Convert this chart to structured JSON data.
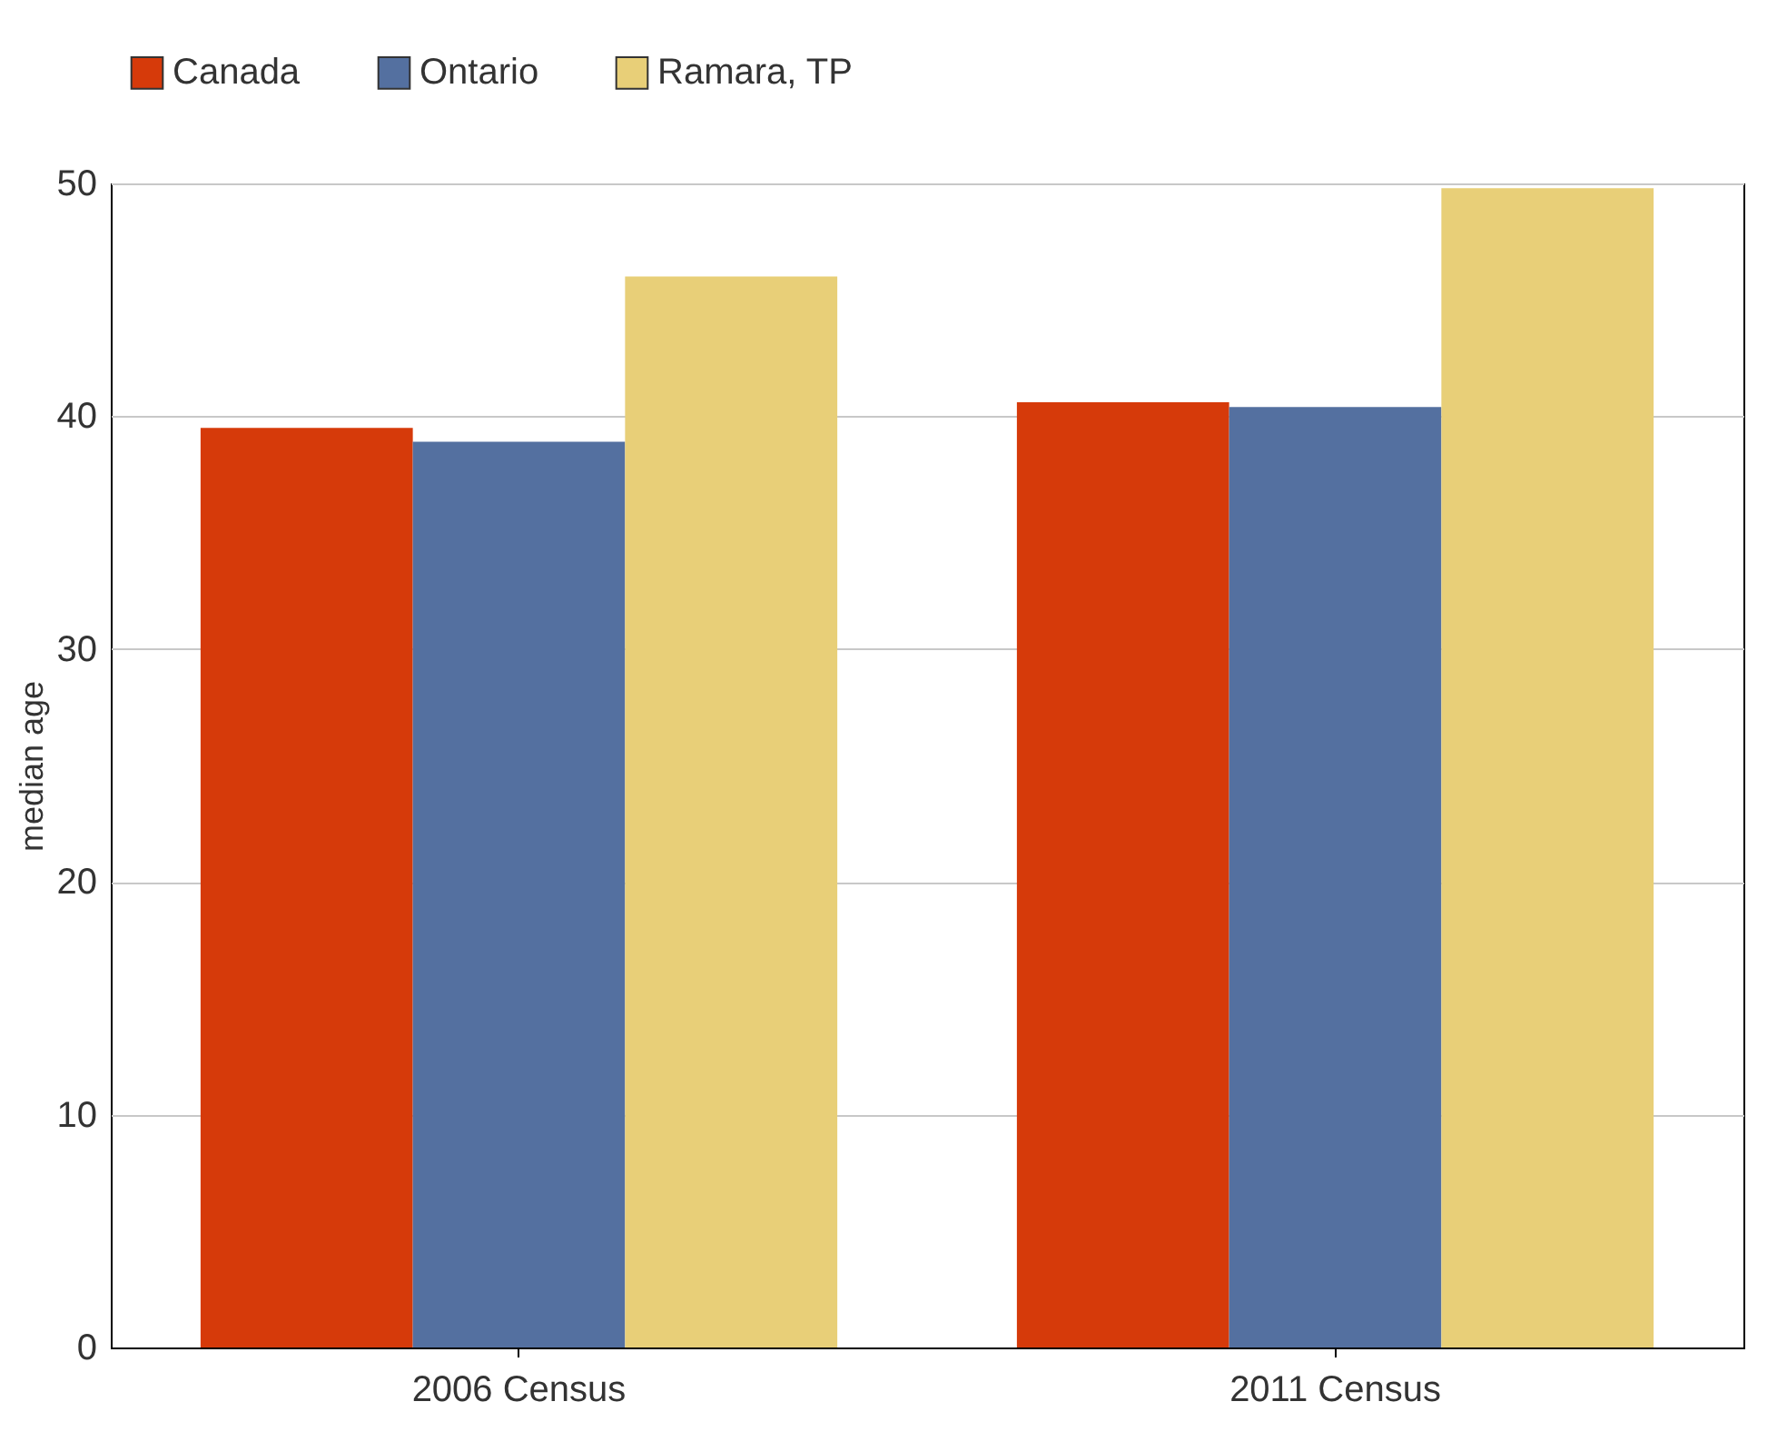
{
  "chart_data": {
    "type": "bar",
    "ylabel": "median age",
    "categories": [
      "2006 Census",
      "2011 Census"
    ],
    "series": [
      {
        "name": "Canada",
        "color": "#d63a0a",
        "values": [
          39.5,
          40.6
        ]
      },
      {
        "name": "Ontario",
        "color": "#5470a0",
        "values": [
          38.9,
          40.4
        ]
      },
      {
        "name": "Ramara, TP",
        "color": "#e8cf78",
        "values": [
          46.0,
          49.8
        ]
      }
    ],
    "ylim": [
      0,
      50
    ],
    "yticks": [
      0,
      10,
      20,
      30,
      40,
      50
    ],
    "grid": "y",
    "legend": "top"
  }
}
